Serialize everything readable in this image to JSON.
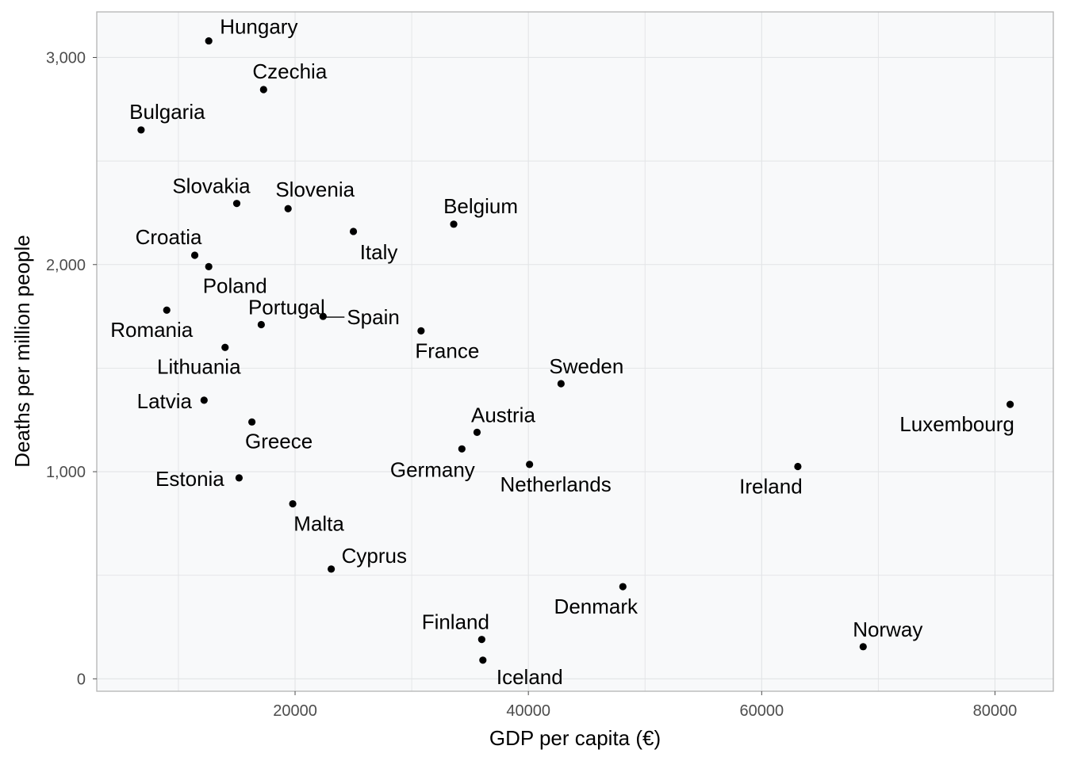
{
  "chart_data": {
    "type": "scatter",
    "title": "",
    "xlabel": "GDP per capita (€)",
    "ylabel": "Deaths per million people",
    "xlim": [
      3000,
      85000
    ],
    "ylim": [
      -60,
      3220
    ],
    "x_ticks": [
      20000,
      40000,
      60000,
      80000
    ],
    "x_tick_labels": [
      "20000",
      "40000",
      "60000",
      "80000"
    ],
    "y_ticks": [
      0,
      1000,
      2000,
      3000
    ],
    "y_tick_labels": [
      "0",
      "1,000",
      "2,000",
      "3,000"
    ],
    "grid": true,
    "legend": "none",
    "colors": {
      "panel": "#f8f9fa",
      "grid": "#e2e4e6",
      "border": "#b3b3b3",
      "point": "#000000"
    },
    "points": [
      {
        "label": "Hungary",
        "x": 12600,
        "y": 3080
      },
      {
        "label": "Czechia",
        "x": 17300,
        "y": 2845
      },
      {
        "label": "Bulgaria",
        "x": 6800,
        "y": 2650
      },
      {
        "label": "Slovakia",
        "x": 15000,
        "y": 2295
      },
      {
        "label": "Slovenia",
        "x": 19400,
        "y": 2270
      },
      {
        "label": "Belgium",
        "x": 33600,
        "y": 2195
      },
      {
        "label": "Italy",
        "x": 25000,
        "y": 2160
      },
      {
        "label": "Croatia",
        "x": 11400,
        "y": 2045
      },
      {
        "label": "Poland",
        "x": 12600,
        "y": 1990
      },
      {
        "label": "Romania",
        "x": 9000,
        "y": 1780
      },
      {
        "label": "Spain",
        "x": 22400,
        "y": 1750
      },
      {
        "label": "Portugal",
        "x": 17100,
        "y": 1710
      },
      {
        "label": "France",
        "x": 30800,
        "y": 1680
      },
      {
        "label": "Lithuania",
        "x": 14000,
        "y": 1600
      },
      {
        "label": "Sweden",
        "x": 42800,
        "y": 1425
      },
      {
        "label": "Latvia",
        "x": 12200,
        "y": 1345
      },
      {
        "label": "Luxembourg",
        "x": 81300,
        "y": 1325
      },
      {
        "label": "Greece",
        "x": 16300,
        "y": 1240
      },
      {
        "label": "Austria",
        "x": 35600,
        "y": 1190
      },
      {
        "label": "Germany",
        "x": 34300,
        "y": 1110
      },
      {
        "label": "Netherlands",
        "x": 40100,
        "y": 1035
      },
      {
        "label": "Ireland",
        "x": 63100,
        "y": 1025
      },
      {
        "label": "Estonia",
        "x": 15200,
        "y": 970
      },
      {
        "label": "Malta",
        "x": 19800,
        "y": 845
      },
      {
        "label": "Cyprus",
        "x": 23100,
        "y": 530
      },
      {
        "label": "Denmark",
        "x": 48100,
        "y": 445
      },
      {
        "label": "Finland",
        "x": 36000,
        "y": 190
      },
      {
        "label": "Norway",
        "x": 68700,
        "y": 155
      },
      {
        "label": "Iceland",
        "x": 36100,
        "y": 90
      }
    ]
  }
}
